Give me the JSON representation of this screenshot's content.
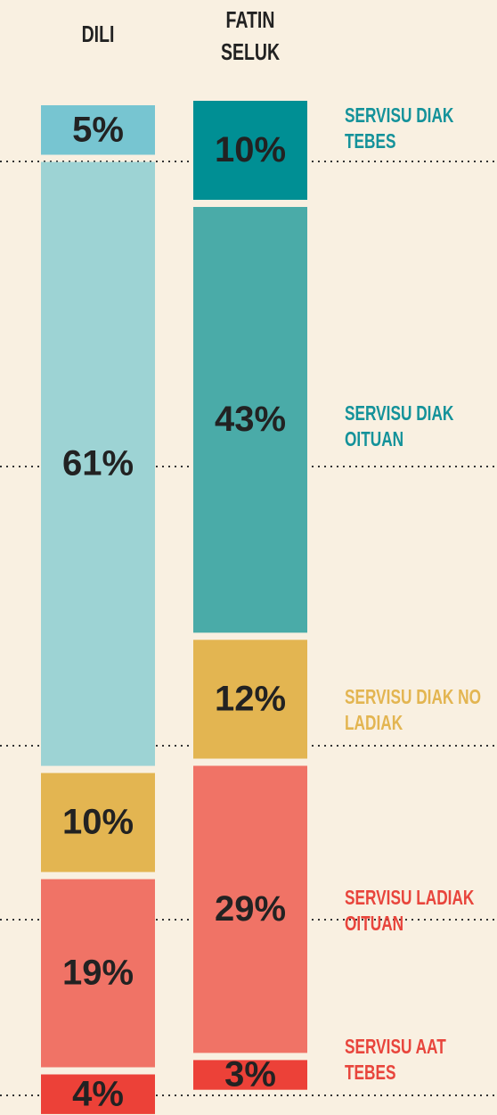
{
  "chart_data": {
    "type": "stacked-bar",
    "categories": [
      "DILI",
      "FATIN SELUK"
    ],
    "series": [
      {
        "name": "SERVISU DIAK TEBES",
        "color": "#14929a",
        "colors": [
          "#77c5d1",
          "#008f94"
        ],
        "values": [
          5,
          10
        ],
        "value_labels": [
          "5%",
          "10%"
        ]
      },
      {
        "name": "SERVISU DIAK OITUAN",
        "color": "#14929a",
        "colors": [
          "#9dd3d4",
          "#4aaba8"
        ],
        "values": [
          61,
          43
        ],
        "value_labels": [
          "61%",
          "43%"
        ]
      },
      {
        "name": "SERVISU DIAK NO LADIAK",
        "color": "#e3b551",
        "colors": [
          "#e3b551",
          "#e3b551"
        ],
        "values": [
          10,
          12
        ],
        "value_labels": [
          "10%",
          "12%"
        ]
      },
      {
        "name": "SERVISU LADIAK OITUAN",
        "color": "#e8453c",
        "colors": [
          "#f07366",
          "#f07366"
        ],
        "values": [
          19,
          29
        ],
        "value_labels": [
          "19%",
          "29%"
        ]
      },
      {
        "name": "SERVISU AAT TEBES",
        "color": "#e8453c",
        "colors": [
          "#ec4138",
          "#ec4138"
        ],
        "values": [
          4,
          3
        ],
        "value_labels": [
          "4%",
          "3%"
        ]
      }
    ]
  }
}
